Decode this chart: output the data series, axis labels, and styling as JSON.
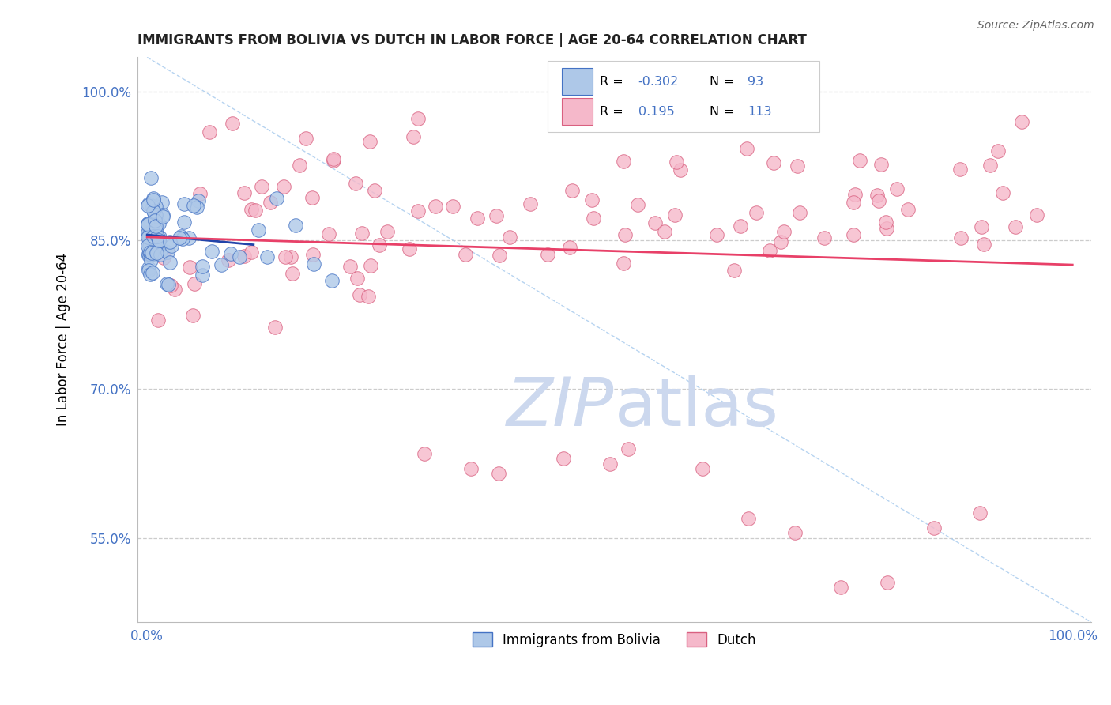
{
  "title": "IMMIGRANTS FROM BOLIVIA VS DUTCH IN LABOR FORCE | AGE 20-64 CORRELATION CHART",
  "source": "Source: ZipAtlas.com",
  "ylabel": "In Labor Force | Age 20-64",
  "xlim": [
    -0.01,
    1.02
  ],
  "ylim": [
    0.465,
    1.035
  ],
  "yticks": [
    0.55,
    0.7,
    0.85,
    1.0
  ],
  "ytick_labels": [
    "55.0%",
    "70.0%",
    "85.0%",
    "100.0%"
  ],
  "xtick_labels": [
    "0.0%",
    "100.0%"
  ],
  "legend_R1": "-0.302",
  "legend_N1": "93",
  "legend_R2": "0.195",
  "legend_N2": "113",
  "blue_face": "#aec8e8",
  "blue_edge": "#4472c4",
  "pink_face": "#f5b8ca",
  "pink_edge": "#d96080",
  "trend_blue": "#2244aa",
  "trend_pink": "#e84068",
  "diag_color": "#aaccee",
  "watermark_color": "#ccd8ee",
  "grid_color": "#cccccc",
  "bg": "#ffffff",
  "label_color": "#4472c4",
  "title_color": "#222222",
  "source_color": "#666666",
  "legend_text_color": "#4472c4"
}
